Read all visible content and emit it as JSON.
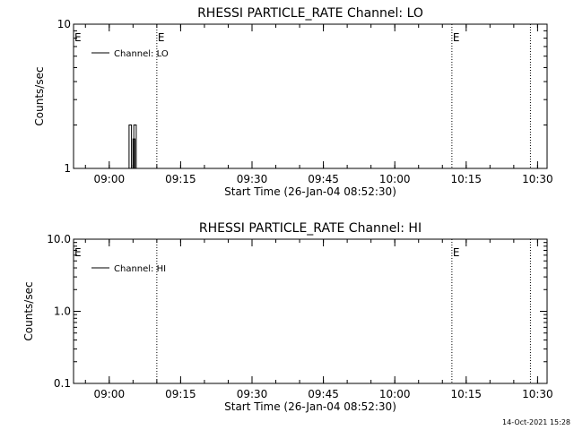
{
  "stamp": "14-Oct-2021 15:28",
  "chart_data": [
    {
      "type": "line",
      "title": "RHESSI PARTICLE_RATE Channel: LO",
      "xlabel": "Start Time (26-Jan-04 08:52:30)",
      "ylabel": "Counts/sec",
      "y_scale": "log",
      "ylim": [
        1,
        10
      ],
      "y_ticks": [
        {
          "v": 1,
          "label": "1"
        },
        {
          "v": 10,
          "label": "10"
        }
      ],
      "x_range": [
        "08:52:30",
        "10:32:00"
      ],
      "x_ticks": [
        "09:00",
        "09:15",
        "09:30",
        "09:45",
        "10:00",
        "10:15",
        "10:30"
      ],
      "legend": {
        "label": "Channel: LO",
        "position": "top-left"
      },
      "markers": [
        {
          "time": "09:10:00",
          "style": "dotted",
          "label": "E"
        },
        {
          "time": "10:12:00",
          "style": "dotted",
          "label": "E"
        },
        {
          "time": "10:28:30",
          "style": "dotted",
          "label": ""
        }
      ],
      "edge_labels": [
        {
          "time": "08:52:30",
          "label": "E"
        }
      ],
      "series": [
        {
          "name": "Channel: LO",
          "points": [
            [
              "09:04:10",
              1
            ],
            [
              "09:04:10",
              2
            ],
            [
              "09:04:40",
              2
            ],
            [
              "09:04:40",
              1
            ],
            [
              "09:05:00",
              1
            ],
            [
              "09:05:00",
              1.6
            ],
            [
              "09:05:25",
              1.6
            ],
            [
              "09:05:25",
              1
            ],
            [
              "09:05:10",
              1
            ],
            [
              "09:05:10",
              2
            ],
            [
              "09:05:40",
              2
            ],
            [
              "09:05:40",
              1
            ]
          ]
        }
      ]
    },
    {
      "type": "line",
      "title": "RHESSI PARTICLE_RATE Channel: HI",
      "xlabel": "Start Time (26-Jan-04 08:52:30)",
      "ylabel": "Counts/sec",
      "y_scale": "log",
      "ylim": [
        0.1,
        10
      ],
      "y_ticks": [
        {
          "v": 0.1,
          "label": "0.1"
        },
        {
          "v": 1,
          "label": "1.0"
        },
        {
          "v": 10,
          "label": "10.0"
        }
      ],
      "x_range": [
        "08:52:30",
        "10:32:00"
      ],
      "x_ticks": [
        "09:00",
        "09:15",
        "09:30",
        "09:45",
        "10:00",
        "10:15",
        "10:30"
      ],
      "legend": {
        "label": "Channel: HI",
        "position": "top-left"
      },
      "markers": [
        {
          "time": "09:10:00",
          "style": "dotted",
          "label": ""
        },
        {
          "time": "10:12:00",
          "style": "dotted",
          "label": "E"
        },
        {
          "time": "10:28:30",
          "style": "dotted",
          "label": ""
        }
      ],
      "edge_labels": [
        {
          "time": "08:52:30",
          "label": "E"
        }
      ],
      "series": [
        {
          "name": "Channel: HI",
          "points": []
        }
      ]
    }
  ]
}
